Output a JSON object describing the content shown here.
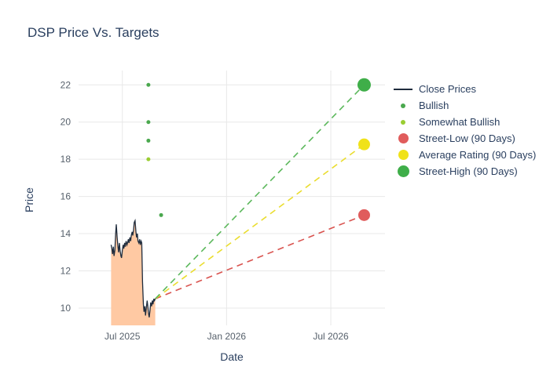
{
  "chart_data": {
    "type": "line+scatter",
    "title": "DSP Price Vs. Targets",
    "xlabel": "Date",
    "ylabel": "Price",
    "xlim": [
      2025.29,
      2026.76
    ],
    "ylim": [
      9.07,
      22.77
    ],
    "grid": true,
    "legend_position": "right",
    "x_ticks": [
      {
        "label": "Jul 2025",
        "value": 2025.5
      },
      {
        "label": "Jan 2026",
        "value": 2026.0
      },
      {
        "label": "Jul 2026",
        "value": 2026.5
      }
    ],
    "y_ticks": [
      10,
      12,
      14,
      16,
      18,
      20,
      22
    ],
    "series": [
      {
        "name": "Close Prices",
        "type": "line",
        "color": "#1f2c3d",
        "fill_color": "#ffc9a3",
        "points": [
          [
            2025.446,
            13.4
          ],
          [
            2025.45,
            13.2
          ],
          [
            2025.453,
            12.9
          ],
          [
            2025.457,
            13.3
          ],
          [
            2025.46,
            12.8
          ],
          [
            2025.464,
            13.1
          ],
          [
            2025.468,
            14.0
          ],
          [
            2025.471,
            14.5
          ],
          [
            2025.475,
            13.8
          ],
          [
            2025.478,
            13.4
          ],
          [
            2025.482,
            13.0
          ],
          [
            2025.486,
            13.5
          ],
          [
            2025.489,
            13.1
          ],
          [
            2025.493,
            12.8
          ],
          [
            2025.496,
            12.7
          ],
          [
            2025.5,
            13.1
          ],
          [
            2025.504,
            13.4
          ],
          [
            2025.507,
            13.2
          ],
          [
            2025.511,
            13.5
          ],
          [
            2025.514,
            13.3
          ],
          [
            2025.518,
            13.6
          ],
          [
            2025.522,
            13.4
          ],
          [
            2025.525,
            13.5
          ],
          [
            2025.529,
            13.7
          ],
          [
            2025.532,
            13.5
          ],
          [
            2025.536,
            13.8
          ],
          [
            2025.54,
            13.6
          ],
          [
            2025.543,
            13.9
          ],
          [
            2025.547,
            14.1
          ],
          [
            2025.55,
            13.9
          ],
          [
            2025.554,
            14.2
          ],
          [
            2025.557,
            14.6
          ],
          [
            2025.561,
            14.7
          ],
          [
            2025.565,
            14.1
          ],
          [
            2025.568,
            13.8
          ],
          [
            2025.572,
            14.0
          ],
          [
            2025.575,
            13.6
          ],
          [
            2025.579,
            13.5
          ],
          [
            2025.583,
            13.7
          ],
          [
            2025.586,
            13.4
          ],
          [
            2025.59,
            13.6
          ],
          [
            2025.593,
            13.5
          ],
          [
            2025.597,
            11.4
          ],
          [
            2025.601,
            10.2
          ],
          [
            2025.604,
            9.8
          ],
          [
            2025.608,
            10.1
          ],
          [
            2025.611,
            9.6
          ],
          [
            2025.615,
            10.0
          ],
          [
            2025.619,
            10.4
          ],
          [
            2025.622,
            10.1
          ],
          [
            2025.626,
            9.7
          ],
          [
            2025.629,
            9.5
          ],
          [
            2025.633,
            9.9
          ],
          [
            2025.636,
            10.3
          ],
          [
            2025.64,
            10.1
          ],
          [
            2025.644,
            10.4
          ],
          [
            2025.647,
            10.2
          ],
          [
            2025.651,
            10.5
          ],
          [
            2025.654,
            10.4
          ],
          [
            2025.658,
            10.5
          ]
        ]
      },
      {
        "name": "Bullish",
        "type": "scatter",
        "color": "#4aa84e",
        "marker_radius": 2.5,
        "points": [
          [
            2025.625,
            22
          ],
          [
            2025.625,
            20
          ],
          [
            2025.625,
            19
          ],
          [
            2025.686,
            15
          ]
        ]
      },
      {
        "name": "Somewhat Bullish",
        "type": "scatter",
        "color": "#9acd32",
        "marker_radius": 2.5,
        "points": [
          [
            2025.625,
            18
          ]
        ]
      },
      {
        "name": "Street-Low (90 Days)",
        "type": "projection",
        "line_color": "#d9534f",
        "marker_color": "#e05c5c",
        "marker_radius": 7.5,
        "points": [
          [
            2025.658,
            10.5
          ],
          [
            2026.66,
            15
          ]
        ]
      },
      {
        "name": "Average Rating (90 Days)",
        "type": "projection",
        "line_color": "#eadd2f",
        "marker_color": "#f0e219",
        "marker_radius": 7.5,
        "points": [
          [
            2025.658,
            10.5
          ],
          [
            2026.66,
            18.8
          ]
        ]
      },
      {
        "name": "Street-High (90 Days)",
        "type": "projection",
        "line_color": "#5cb85c",
        "marker_color": "#3fae49",
        "marker_radius": 8.5,
        "points": [
          [
            2025.658,
            10.5
          ],
          [
            2026.66,
            22
          ]
        ]
      }
    ],
    "legend": [
      {
        "label": "Close Prices",
        "symbol": "line",
        "color": "#1f2c3d",
        "size": 2
      },
      {
        "label": "Bullish",
        "symbol": "dot",
        "color": "#4aa84e",
        "size": 6
      },
      {
        "label": "Somewhat Bullish",
        "symbol": "dot",
        "color": "#9acd32",
        "size": 6
      },
      {
        "label": "Street-Low (90 Days)",
        "symbol": "dot",
        "color": "#e05c5c",
        "size": 13
      },
      {
        "label": "Average Rating (90 Days)",
        "symbol": "dot",
        "color": "#f0e219",
        "size": 13
      },
      {
        "label": "Street-High (90 Days)",
        "symbol": "dot",
        "color": "#3fae49",
        "size": 15
      }
    ],
    "style": {
      "grid_color": "#e8e8e8",
      "tick_color": "#56606b",
      "text_color": "#2a3f5f",
      "background": "#ffffff"
    }
  }
}
